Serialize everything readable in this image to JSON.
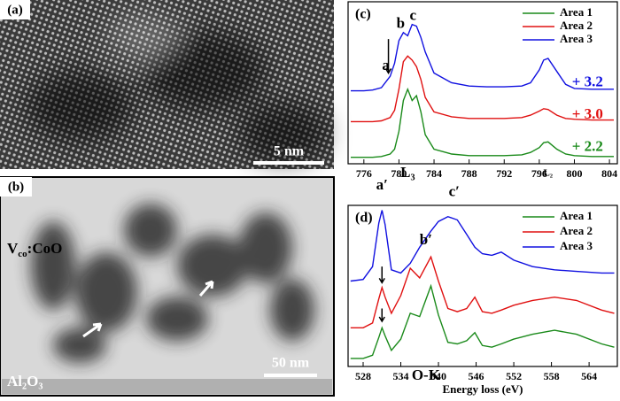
{
  "panel_a": {
    "label": "(a)",
    "scale_bar": "5 nm"
  },
  "panel_b": {
    "label": "(b)",
    "film_label_parts": [
      "V",
      "co",
      ":CoO"
    ],
    "substrate": "Al₂O₃",
    "scale_bar": "50 nm"
  },
  "chart_data": [
    {
      "type": "line",
      "panel_label": "(c)",
      "x": [
        774.5,
        776,
        777,
        778,
        779,
        779.5,
        780,
        780.5,
        781,
        781.5,
        782,
        782.5,
        783,
        784,
        786,
        788,
        790,
        792,
        794,
        795,
        796,
        796.5,
        797,
        798,
        799,
        800,
        802,
        804.5
      ],
      "series": [
        {
          "name": "Area 1",
          "color": "#1a8a1a",
          "values": [
            0.4,
            0.4,
            0.4,
            0.45,
            0.6,
            0.9,
            2.0,
            3.9,
            4.6,
            3.9,
            4.2,
            3.2,
            1.8,
            0.9,
            0.6,
            0.5,
            0.5,
            0.5,
            0.55,
            0.7,
            1.0,
            1.3,
            1.35,
            0.9,
            0.6,
            0.5,
            0.45,
            0.45
          ]
        },
        {
          "name": "Area 2",
          "color": "#e01010",
          "values": [
            2.6,
            2.6,
            2.6,
            2.65,
            2.85,
            3.3,
            4.6,
            6.3,
            6.65,
            6.4,
            6.0,
            5.2,
            4.1,
            3.2,
            2.9,
            2.8,
            2.8,
            2.8,
            2.85,
            3.0,
            3.25,
            3.4,
            3.35,
            3.0,
            2.8,
            2.75,
            2.7,
            2.7
          ]
        },
        {
          "name": "Area 3",
          "color": "#1010e0",
          "values": [
            4.5,
            4.5,
            4.55,
            4.7,
            5.4,
            6.2,
            7.6,
            8.1,
            7.9,
            8.6,
            8.5,
            7.8,
            6.9,
            5.6,
            5.0,
            4.8,
            4.75,
            4.75,
            4.8,
            5.0,
            5.8,
            6.4,
            6.5,
            5.7,
            4.9,
            4.65,
            4.6,
            4.6
          ]
        }
      ],
      "xlim": [
        774.2,
        804.9
      ],
      "ylim": [
        0,
        10
      ],
      "xticks": [
        776,
        780,
        784,
        788,
        792,
        796,
        800,
        804
      ],
      "annotations": [
        "a",
        "b",
        "c",
        "L₃",
        "L₂",
        "+ 3.2",
        "+ 3.0",
        "+ 2.2"
      ],
      "legend": "top-right"
    },
    {
      "type": "line",
      "panel_label": "(d)",
      "xlabel": "Energy loss (eV)",
      "x": [
        526,
        528,
        529.5,
        530.5,
        531,
        531.5,
        532.5,
        534,
        535.5,
        537,
        538.8,
        540,
        541.5,
        543,
        544.5,
        545.8,
        547,
        548.5,
        550,
        552,
        555,
        558.5,
        562,
        566,
        568
      ],
      "series": [
        {
          "name": "Area 1",
          "color": "#1a8a1a",
          "values": [
            0.5,
            0.5,
            0.7,
            1.8,
            2.4,
            1.9,
            1.0,
            1.7,
            3.3,
            3.1,
            5.0,
            3.2,
            1.5,
            1.4,
            1.6,
            2.1,
            1.3,
            1.2,
            1.4,
            1.7,
            2.0,
            2.25,
            2.0,
            1.4,
            1.2
          ]
        },
        {
          "name": "Area 2",
          "color": "#e01010",
          "values": [
            2.4,
            2.4,
            2.7,
            4.2,
            4.9,
            4.3,
            3.3,
            4.4,
            6.1,
            5.5,
            6.8,
            5.3,
            3.6,
            3.4,
            3.6,
            4.3,
            3.4,
            3.3,
            3.5,
            3.8,
            4.1,
            4.3,
            4.1,
            3.5,
            3.3
          ]
        },
        {
          "name": "Area 3",
          "color": "#1010e0",
          "values": [
            5.3,
            5.4,
            6.2,
            8.9,
            9.7,
            8.8,
            6.0,
            5.8,
            6.4,
            7.4,
            8.4,
            9.0,
            9.3,
            9.1,
            8.2,
            7.4,
            7.0,
            6.9,
            7.1,
            6.6,
            6.2,
            6.0,
            5.9,
            5.8,
            5.8
          ]
        }
      ],
      "xlim": [
        525.6,
        568.5
      ],
      "ylim": [
        0,
        10
      ],
      "xticks": [
        528,
        534,
        540,
        546,
        552,
        558,
        564
      ],
      "annotations": [
        "a′",
        "b′",
        "c′",
        "O-K"
      ],
      "legend": "top-right"
    }
  ]
}
